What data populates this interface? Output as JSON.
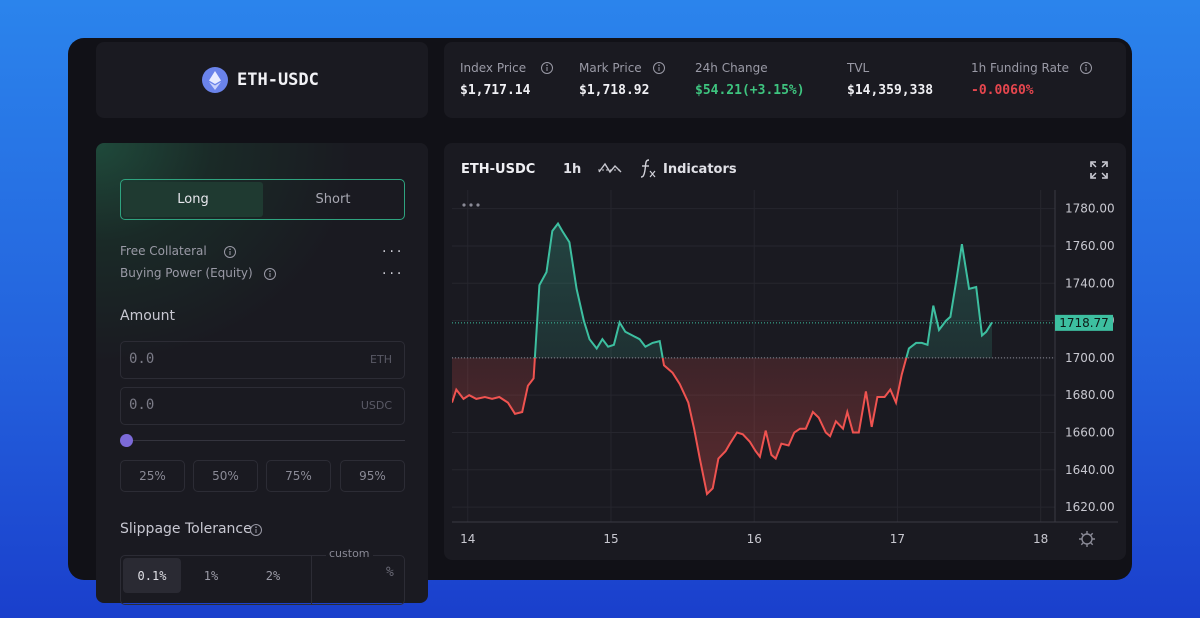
{
  "market": {
    "name": "ETH-USDC"
  },
  "stats": [
    {
      "label": "Index Price",
      "value": "$1,717.14"
    },
    {
      "label": "Mark Price",
      "value": "$1,718.92"
    },
    {
      "label": "24h Change",
      "value": "$54.21(+3.15%)"
    },
    {
      "label": "TVL",
      "value": "$14,359,338"
    },
    {
      "label": "1h Funding Rate",
      "value": "-0.0060%"
    }
  ],
  "trade": {
    "tabs": [
      "Long",
      "Short"
    ],
    "info": [
      {
        "label": "Free Collateral",
        "value": "..."
      },
      {
        "label": "Buying Power (Equity)",
        "value": "..."
      }
    ],
    "amount_label": "Amount",
    "inputs": [
      {
        "placeholder": "0.0",
        "unit": "ETH"
      },
      {
        "placeholder": "0.0",
        "unit": "USDC"
      }
    ],
    "presets": [
      "25%",
      "50%",
      "75%",
      "95%"
    ],
    "slippage_label": "Slippage Tolerance",
    "slippage_options": [
      "0.1%",
      "1%",
      "2%"
    ],
    "custom_label": "custom",
    "custom_unit": "%"
  },
  "toolbar": {
    "symbol": "ETH-USDC",
    "interval": "1h",
    "indicators": "Indicators"
  },
  "chart_data": {
    "type": "line",
    "x": [
      13.89,
      13.92,
      13.97,
      14.01,
      14.06,
      14.12,
      14.17,
      14.22,
      14.28,
      14.33,
      14.38,
      14.42,
      14.46,
      14.5,
      14.55,
      14.59,
      14.63,
      14.66,
      14.71,
      14.76,
      14.81,
      14.85,
      14.9,
      14.94,
      14.98,
      15.02,
      15.06,
      15.1,
      15.15,
      15.2,
      15.24,
      15.29,
      15.34,
      15.37,
      15.43,
      15.48,
      15.54,
      15.58,
      15.62,
      15.67,
      15.71,
      15.75,
      15.8,
      15.83,
      15.88,
      15.92,
      15.97,
      16.01,
      16.04,
      16.08,
      16.12,
      16.15,
      16.19,
      16.24,
      16.28,
      16.32,
      16.36,
      16.41,
      16.45,
      16.5,
      16.53,
      16.57,
      16.62,
      16.65,
      16.69,
      16.73,
      16.78,
      16.82,
      16.86,
      16.91,
      16.95,
      16.99,
      17.03,
      17.08,
      17.13,
      17.17,
      17.21,
      17.25,
      17.29,
      17.34,
      17.37,
      17.41,
      17.45,
      17.5,
      17.55,
      17.59,
      17.62,
      17.66
    ],
    "values": [
      1676,
      1683,
      1678,
      1680,
      1678,
      1679,
      1678,
      1679,
      1676,
      1670,
      1671,
      1685,
      1689,
      1739,
      1746,
      1768,
      1772,
      1768,
      1762,
      1737,
      1720,
      1710,
      1705,
      1710,
      1706,
      1707,
      1719,
      1714,
      1712,
      1710,
      1706,
      1708,
      1709,
      1696,
      1692,
      1686,
      1676,
      1662,
      1646,
      1627,
      1630,
      1646,
      1650,
      1654,
      1660,
      1659,
      1655,
      1650,
      1647,
      1661,
      1648,
      1646,
      1654,
      1653,
      1660,
      1662,
      1662,
      1671,
      1668,
      1660,
      1658,
      1666,
      1662,
      1671,
      1660,
      1660,
      1682,
      1663,
      1679,
      1679,
      1683,
      1676,
      1691,
      1705,
      1708,
      1708,
      1707,
      1728,
      1715,
      1720,
      1722,
      1741,
      1761,
      1737,
      1738,
      1712,
      1714,
      1719
    ],
    "xlim": [
      13.89,
      18.1
    ],
    "ylim": [
      1612,
      1790
    ],
    "xticks": [
      14,
      15,
      16,
      17,
      18
    ],
    "yticks": [
      {
        "value": 1620,
        "label": "1620.00"
      },
      {
        "value": 1640,
        "label": "1640.00"
      },
      {
        "value": 1660,
        "label": "1660.00"
      },
      {
        "value": 1680,
        "label": "1680.00"
      },
      {
        "value": 1700,
        "label": "1700.00"
      },
      {
        "value": 1720,
        "label": "1720.00"
      },
      {
        "value": 1740,
        "label": "1740.00"
      },
      {
        "value": 1760,
        "label": "1760.00"
      },
      {
        "value": 1780,
        "label": "1780.00"
      }
    ],
    "baseline": 1700,
    "last_price": {
      "value": 1718.77,
      "label": "1718.77"
    },
    "up_color": "#3dbfa0",
    "down_color": "#ef5350",
    "grid": true
  }
}
